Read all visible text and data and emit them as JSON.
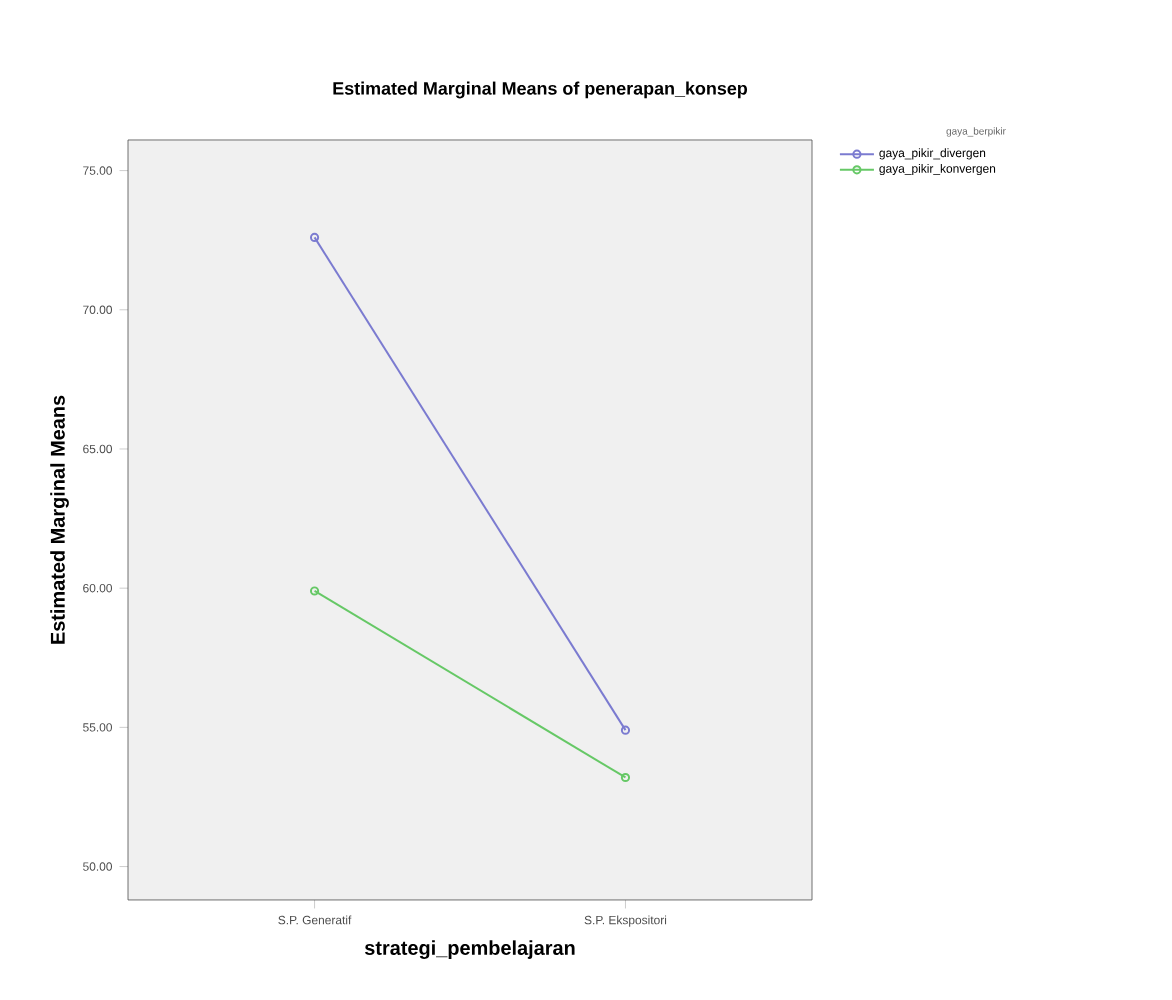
{
  "chart_data": {
    "type": "line",
    "title": "Estimated Marginal Means of penerapan_konsep",
    "xlabel": "strategi_pembelajaran",
    "ylabel": "Estimated Marginal Means",
    "legend_title": "gaya_berpikir",
    "categories": [
      "S.P. Generatif",
      "S.P. Ekspositori"
    ],
    "series": [
      {
        "name": "gaya_pikir_divergen",
        "color": "#7b7bd0",
        "values": [
          72.6,
          54.9
        ]
      },
      {
        "name": "gaya_pikir_konvergen",
        "color": "#66c866",
        "values": [
          59.9,
          53.2
        ]
      }
    ],
    "ylim": [
      48.8,
      76.1
    ],
    "yticks": [
      {
        "value": 50,
        "label": "50.00"
      },
      {
        "value": 55,
        "label": "55.00"
      },
      {
        "value": 60,
        "label": "60.00"
      },
      {
        "value": 65,
        "label": "65.00"
      },
      {
        "value": 70,
        "label": "70.00"
      },
      {
        "value": 75,
        "label": "75.00"
      }
    ],
    "grid": false,
    "legend": "top right",
    "marker": "circle",
    "line_style": "solid"
  }
}
